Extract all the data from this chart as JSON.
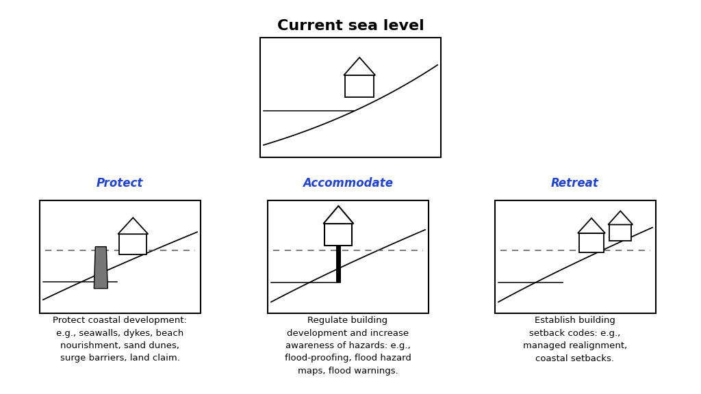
{
  "title": "Current sea level",
  "title_fontsize": 16,
  "bg_color": "#ffffff",
  "section_labels": [
    "Protect",
    "Accommodate",
    "Retreat"
  ],
  "section_label_color": "#2244cc",
  "section_label_fontsize": 12,
  "desc_texts": [
    "Protect coastal development:\ne.g., seawalls, dykes, beach\nnourishment, sand dunes,\nsurge barriers, land claim.",
    "Regulate building\ndevelopment and increase\nawareness of hazards: e.g.,\nflood-proofing, flood hazard\nmaps, flood warnings.",
    "Establish building\nsetback codes: e.g.,\nmanaged realignment,\ncoastal setbacks."
  ],
  "desc_fontsize": 9.5,
  "barrier_color": "#777777"
}
